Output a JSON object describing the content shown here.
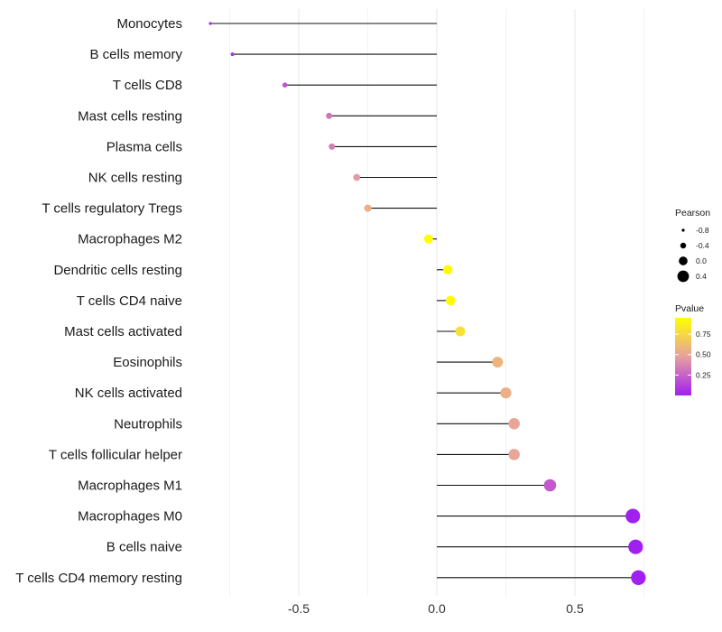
{
  "chart_data": {
    "type": "lollipop",
    "xlabel": "",
    "ylabel": "",
    "xlim": [
      -0.83,
      0.75
    ],
    "x_ticks": [
      {
        "value": -0.5,
        "label": "-0.5"
      },
      {
        "value": 0.0,
        "label": "0.0"
      },
      {
        "value": 0.5,
        "label": "0.5"
      }
    ],
    "categories": [
      "Monocytes",
      "B cells memory",
      "T cells CD8",
      "Mast cells resting",
      "Plasma cells",
      "NK cells resting",
      "T cells regulatory  Tregs",
      "Macrophages M2",
      "Dendritic cells resting",
      "T cells CD4 naive",
      "Mast cells activated",
      "Eosinophils",
      "NK cells activated",
      "Neutrophils",
      "T cells follicular helper",
      "Macrophages M1",
      "Macrophages M0",
      "B cells naive",
      "T cells CD4 memory resting"
    ],
    "pearson": [
      -0.82,
      -0.74,
      -0.55,
      -0.39,
      -0.38,
      -0.29,
      -0.25,
      -0.03,
      0.04,
      0.05,
      0.085,
      0.22,
      0.25,
      0.28,
      0.28,
      0.41,
      0.71,
      0.72,
      0.73
    ],
    "pvalue": [
      0.03,
      0.06,
      0.2,
      0.32,
      0.35,
      0.45,
      0.55,
      0.95,
      0.93,
      0.92,
      0.8,
      0.58,
      0.55,
      0.5,
      0.5,
      0.22,
      0.0,
      0.0,
      0.0
    ],
    "size_legend": {
      "title": "Pearson",
      "items": [
        {
          "value": -0.8,
          "label": "-0.8"
        },
        {
          "value": -0.4,
          "label": "-0.4"
        },
        {
          "value": 0.0,
          "label": "0.0"
        },
        {
          "value": 0.4,
          "label": "0.4"
        }
      ]
    },
    "color_legend": {
      "title": "Pvalue",
      "colors": [
        "#a020f0",
        "#e8a0a0",
        "#ffff00"
      ],
      "range": [
        0.0,
        0.95
      ],
      "ticks": [
        {
          "value": 0.25,
          "label": "0.25"
        },
        {
          "value": 0.5,
          "label": "0.50"
        },
        {
          "value": 0.75,
          "label": "0.75"
        }
      ]
    }
  }
}
